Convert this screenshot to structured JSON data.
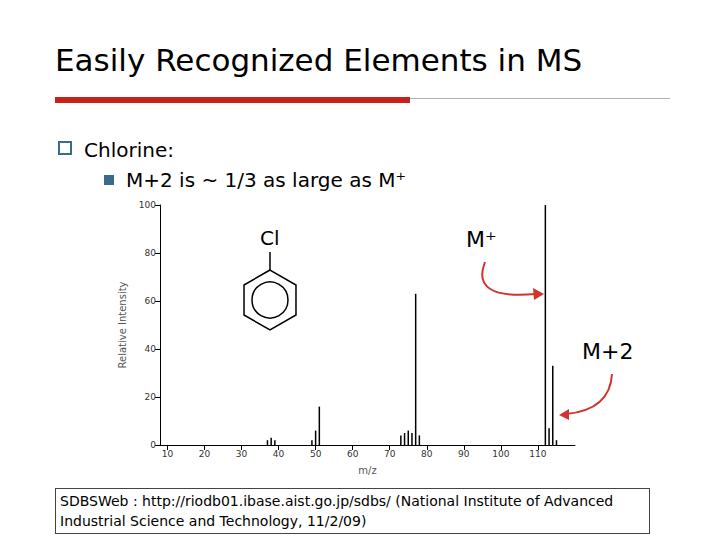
{
  "slide": {
    "title": "Easily Recognized Elements in MS",
    "bullets": [
      "Chlorine:",
      "M+2 is ~ 1/3 as large as M⁺"
    ],
    "source": "SDBSWeb : http://riodb01.ibase.aist.go.jp/sdbs/ (National Institute of Advanced Industrial Science and Technology, 11/2/09)"
  },
  "chart_data": {
    "type": "bar",
    "xlabel": "m/z",
    "ylabel": "Relative Intensity",
    "x": [
      37,
      38,
      39,
      49,
      50,
      51,
      73,
      74,
      75,
      76,
      77,
      78,
      112,
      113,
      114,
      115
    ],
    "values": [
      2,
      3,
      2,
      2,
      6,
      16,
      4,
      5,
      6,
      5,
      63,
      4,
      100,
      7,
      33,
      2
    ],
    "color": "#000000",
    "xlim": [
      8,
      120
    ],
    "xticks": [
      10,
      20,
      30,
      40,
      50,
      60,
      70,
      80,
      90,
      100,
      110
    ],
    "ylim": [
      0,
      100
    ],
    "yticks": [
      0,
      20,
      40,
      60,
      80,
      100
    ],
    "grid": false,
    "annotations": [
      "Cl",
      "M⁺",
      "M+2"
    ]
  }
}
